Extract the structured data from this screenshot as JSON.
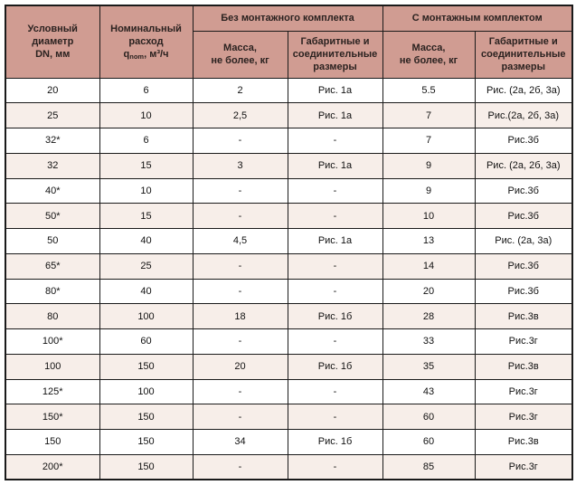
{
  "colors": {
    "header_bg": "#d09c92",
    "row_stripe": "#f7eee9",
    "row_plain": "#ffffff",
    "border": "#1a1a1a",
    "text": "#231f20"
  },
  "table": {
    "header": {
      "dn": "Условный\nдиаметр\nDN, мм",
      "flow_title": "Номинальный\nрасход",
      "flow_q": "q",
      "flow_q_sub": "nom",
      "flow_unit": ", м³/ч",
      "group_without": "Без монтажного комплекта",
      "group_with": "С монтажным комплектом",
      "mass": "Масса,\nне более, кг",
      "dims": "Габаритные и\nсоединительные\nразмеры"
    },
    "columns": [
      "Условный диаметр DN, мм",
      "Номинальный расход qnom, м³/ч",
      "Без монтажного комплекта — Масса, не более, кг",
      "Без монтажного комплекта — Габаритные и соединительные размеры",
      "С монтажным комплектом — Масса, не более, кг",
      "С монтажным комплектом — Габаритные и соединительные размеры"
    ],
    "rows": [
      [
        "20",
        "6",
        "2",
        "Рис. 1а",
        "5.5",
        "Рис. (2а, 2б, 3а)"
      ],
      [
        "25",
        "10",
        "2,5",
        "Рис. 1а",
        "7",
        "Рис.(2а, 2б, 3а)"
      ],
      [
        "32*",
        "6",
        "-",
        "-",
        "7",
        "Рис.3б"
      ],
      [
        "32",
        "15",
        "3",
        "Рис. 1а",
        "9",
        "Рис. (2а, 2б, 3а)"
      ],
      [
        "40*",
        "10",
        "-",
        "-",
        "9",
        "Рис.3б"
      ],
      [
        "50*",
        "15",
        "-",
        "-",
        "10",
        "Рис.3б"
      ],
      [
        "50",
        "40",
        "4,5",
        "Рис. 1а",
        "13",
        "Рис. (2а, 3а)"
      ],
      [
        "65*",
        "25",
        "-",
        "-",
        "14",
        "Рис.3б"
      ],
      [
        "80*",
        "40",
        "-",
        "-",
        "20",
        "Рис.3б"
      ],
      [
        "80",
        "100",
        "18",
        "Рис. 1б",
        "28",
        "Рис.3в"
      ],
      [
        "100*",
        "60",
        "-",
        "-",
        "33",
        "Рис.3г"
      ],
      [
        "100",
        "150",
        "20",
        "Рис. 1б",
        "35",
        "Рис.3в"
      ],
      [
        "125*",
        "100",
        "-",
        "-",
        "43",
        "Рис.3г"
      ],
      [
        "150*",
        "150",
        "-",
        "-",
        "60",
        "Рис.3г"
      ],
      [
        "150",
        "150",
        "34",
        "Рис. 1б",
        "60",
        "Рис.3в"
      ],
      [
        "200*",
        "150",
        "-",
        "-",
        "85",
        "Рис.3г"
      ]
    ]
  }
}
